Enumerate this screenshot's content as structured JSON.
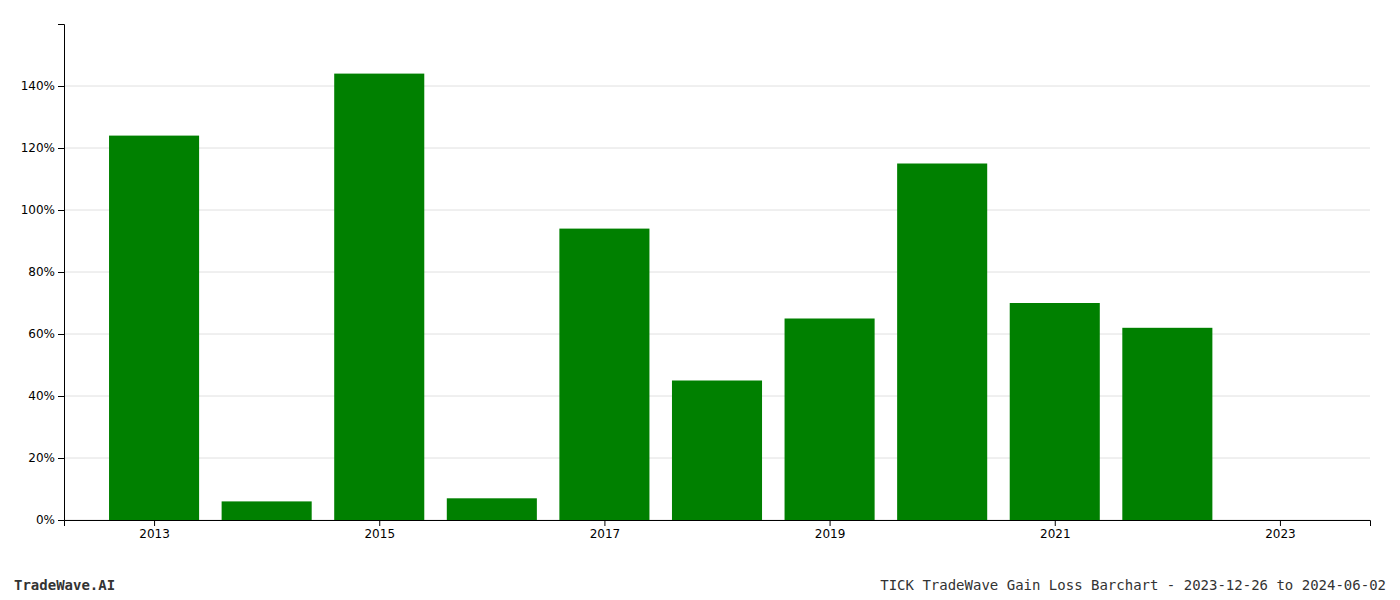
{
  "chart_data": {
    "type": "bar",
    "x": [
      2013,
      2014,
      2015,
      2016,
      2017,
      2018,
      2019,
      2020,
      2021,
      2022,
      2023
    ],
    "values": [
      1.24,
      0.06,
      1.44,
      0.07,
      0.94,
      0.45,
      0.65,
      1.15,
      0.7,
      0.62,
      0.0
    ],
    "color": "#008000",
    "xlim": [
      2012.2,
      2023.8
    ],
    "xticks": [
      2013,
      2015,
      2017,
      2019,
      2021,
      2023
    ],
    "ylim": [
      0,
      1.6
    ],
    "yticks": [
      {
        "value": 0.0,
        "label": "0%"
      },
      {
        "value": 0.2,
        "label": "20%"
      },
      {
        "value": 0.4,
        "label": "40%"
      },
      {
        "value": 0.6,
        "label": "60%"
      },
      {
        "value": 0.8,
        "label": "80%"
      },
      {
        "value": 1.0,
        "label": "100%"
      },
      {
        "value": 1.2,
        "label": "120%"
      },
      {
        "value": 1.4,
        "label": "140%"
      }
    ],
    "grid": true,
    "annotations": [
      "TradeWave.AI",
      "TICK TradeWave Gain Loss Barchart - 2023-12-26 to 2024-06-02"
    ]
  }
}
